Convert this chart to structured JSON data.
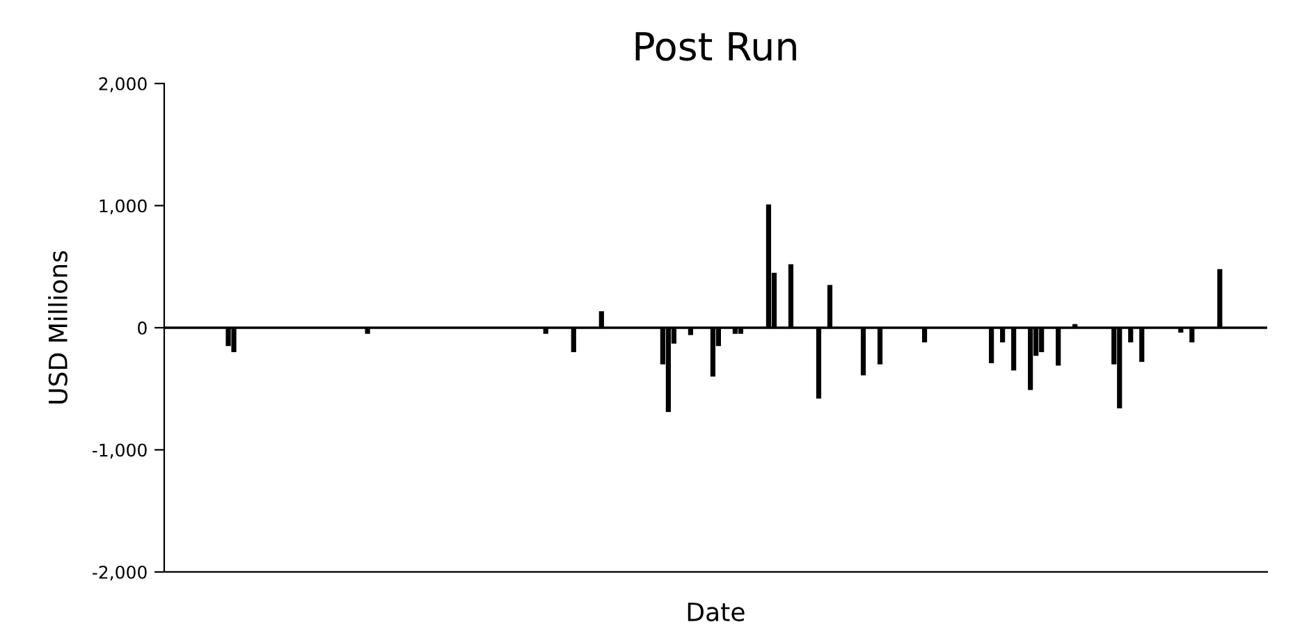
{
  "chart_data": {
    "type": "bar",
    "title": "Post Run",
    "xlabel": "Date",
    "ylabel": "USD Millions",
    "categories": [
      null,
      null,
      null,
      null,
      null,
      null,
      null,
      null,
      null,
      null,
      null,
      null,
      null,
      null,
      null,
      null,
      null,
      null,
      null,
      null,
      null,
      null,
      null,
      null,
      null,
      null,
      null,
      null,
      null,
      null,
      null,
      null,
      null,
      null,
      null,
      null,
      null,
      null,
      null,
      null,
      null,
      null,
      null,
      null,
      null,
      null,
      null,
      null,
      null,
      null,
      null,
      null,
      null,
      null,
      null,
      null,
      null,
      null,
      null,
      null,
      null,
      null,
      null,
      null,
      null,
      null,
      null,
      null,
      null,
      null,
      null,
      null,
      null,
      null,
      null,
      null,
      null,
      null,
      null,
      null,
      null,
      null,
      null,
      null,
      null,
      null,
      null,
      null,
      null,
      null,
      null,
      null,
      null,
      null,
      null,
      null,
      null,
      null,
      null,
      null,
      null,
      null,
      null,
      null,
      null,
      null,
      null,
      null,
      null,
      null,
      null,
      null,
      null,
      null,
      null,
      null,
      null,
      null,
      null,
      null,
      null,
      null,
      null,
      null,
      null,
      null,
      null,
      null,
      null,
      null,
      null,
      null,
      null,
      null,
      null,
      null,
      null,
      null,
      null,
      null,
      null,
      null,
      null,
      null,
      null,
      null,
      null,
      null,
      null,
      null,
      null,
      null,
      null,
      null,
      null,
      null,
      null,
      null,
      null,
      null,
      null,
      null,
      null,
      null,
      null,
      null,
      null,
      null,
      null,
      null,
      null,
      null,
      null,
      null,
      null,
      null,
      null,
      null,
      null,
      null,
      null,
      null,
      null,
      null,
      null,
      null,
      null,
      null,
      null,
      null,
      null,
      null,
      null,
      null,
      null,
      null,
      null,
      null
    ],
    "values": [
      null,
      null,
      null,
      null,
      null,
      null,
      null,
      null,
      null,
      null,
      null,
      -150,
      -200,
      null,
      null,
      null,
      null,
      null,
      null,
      null,
      null,
      null,
      null,
      null,
      null,
      null,
      null,
      null,
      null,
      null,
      null,
      null,
      null,
      null,
      null,
      null,
      -50,
      null,
      null,
      null,
      null,
      null,
      null,
      null,
      null,
      null,
      null,
      null,
      null,
      null,
      null,
      null,
      null,
      null,
      null,
      null,
      null,
      null,
      null,
      null,
      null,
      null,
      null,
      null,
      null,
      null,
      null,
      null,
      -50,
      null,
      null,
      null,
      null,
      -200,
      null,
      null,
      null,
      null,
      135,
      null,
      null,
      null,
      null,
      null,
      null,
      null,
      null,
      null,
      null,
      -300,
      -690,
      -130,
      null,
      null,
      -60,
      null,
      null,
      null,
      -400,
      -150,
      null,
      null,
      -50,
      -50,
      null,
      null,
      null,
      null,
      1010,
      450,
      null,
      null,
      520,
      null,
      null,
      null,
      null,
      -580,
      null,
      350,
      null,
      null,
      null,
      null,
      null,
      -390,
      null,
      null,
      -300,
      null,
      null,
      null,
      null,
      null,
      null,
      null,
      -120,
      null,
      null,
      null,
      null,
      null,
      null,
      null,
      null,
      null,
      null,
      null,
      -290,
      null,
      -120,
      null,
      -350,
      null,
      null,
      -510,
      -230,
      -200,
      null,
      null,
      -310,
      null,
      null,
      30,
      null,
      null,
      null,
      null,
      null,
      null,
      -300,
      -660,
      null,
      -120,
      null,
      -280,
      null,
      null,
      null,
      null,
      null,
      null,
      -40,
      null,
      -120,
      null,
      null,
      null,
      null,
      480,
      null,
      null,
      null,
      null,
      null,
      null,
      null,
      null
    ],
    "color": "#000000",
    "ylim": [
      -2000,
      2000
    ],
    "yticks": [
      {
        "value": -2000,
        "label": "-2,000"
      },
      {
        "value": -1000,
        "label": "-1,000"
      },
      0,
      {
        "value": 1000,
        "label": "1,000"
      },
      {
        "value": 2000,
        "label": "2,000"
      }
    ],
    "ref_lines": [
      {
        "axis": "y",
        "value": 0,
        "color": "#000000"
      }
    ],
    "grid": false,
    "legend": false
  }
}
